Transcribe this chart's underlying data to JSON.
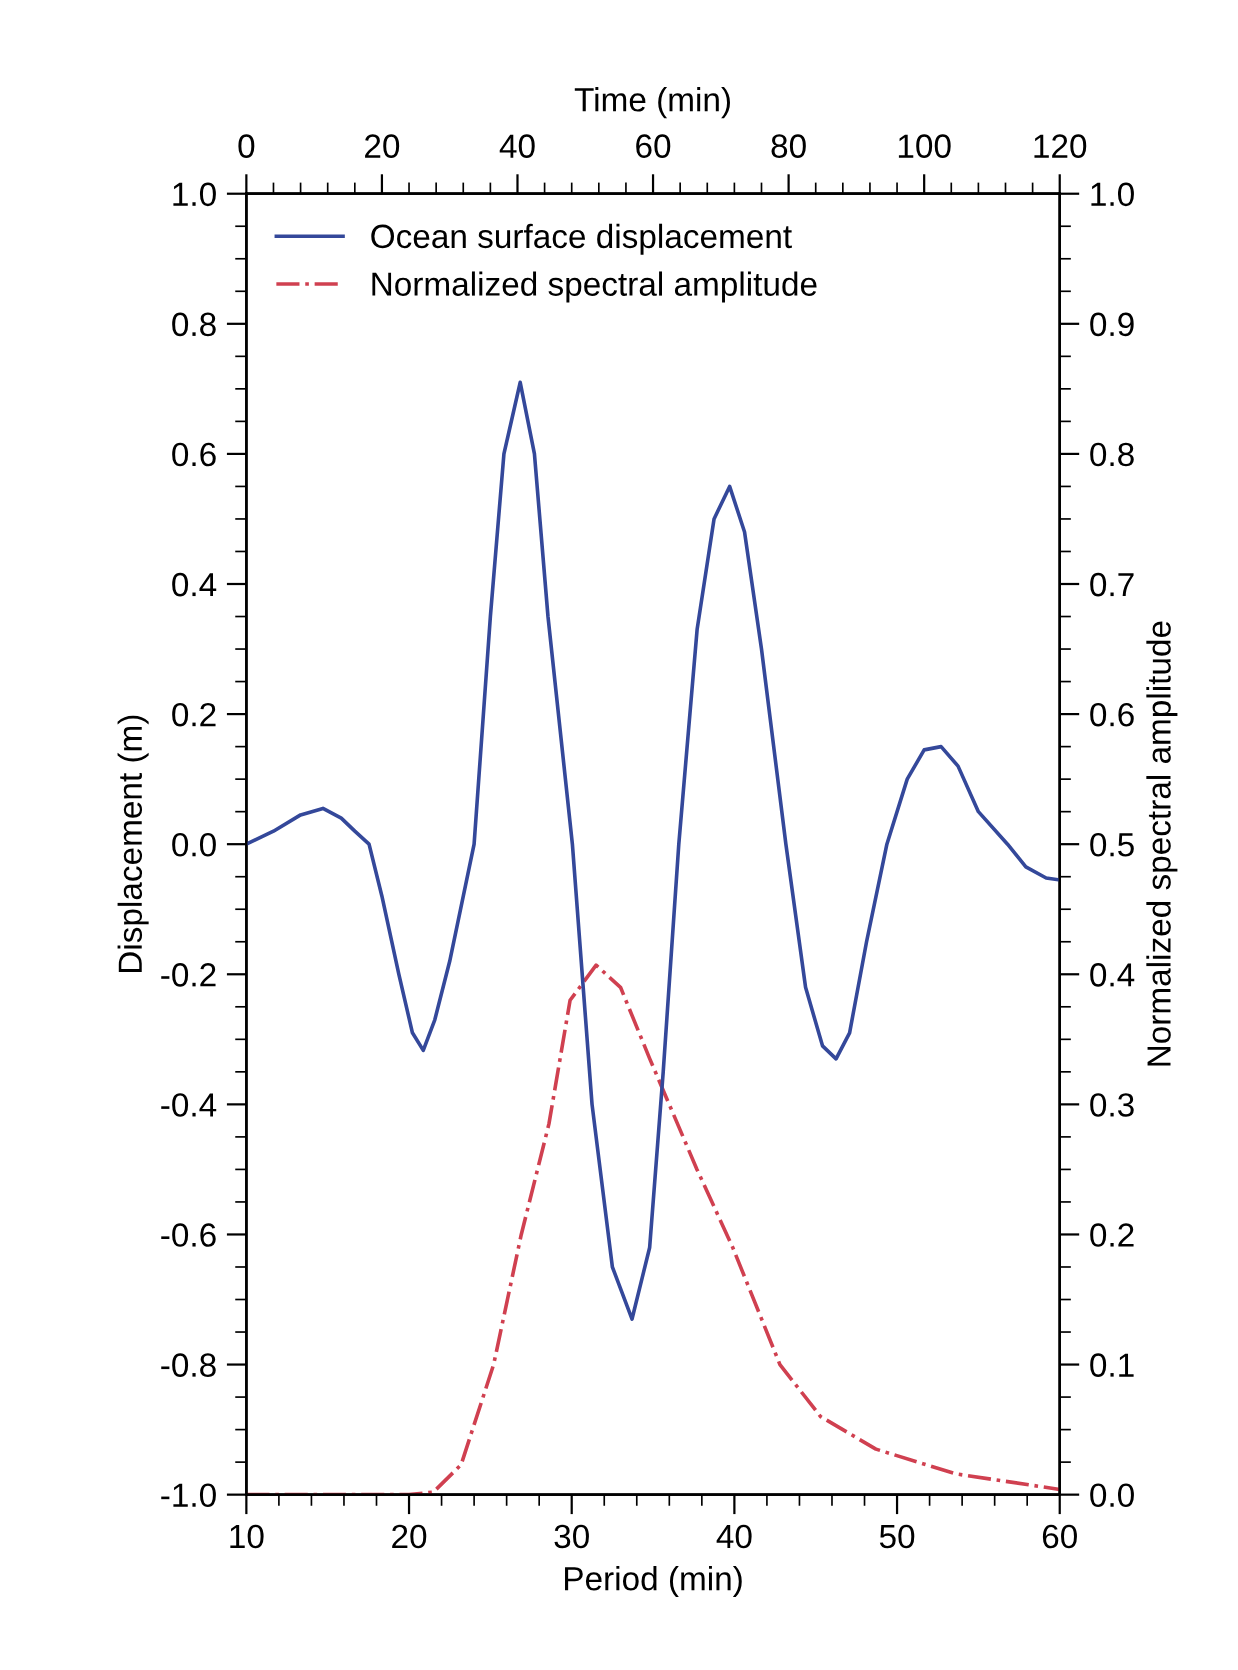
{
  "chart_data": {
    "type": "line",
    "xlabel": "Period (min)",
    "x2label": "Time (min)",
    "ylabel": "Displacement (m)",
    "y2label": "Normalized spectral amplitude",
    "xlim": [
      10,
      60
    ],
    "xticks": [
      10,
      20,
      30,
      40,
      50,
      60
    ],
    "x2lim": [
      0,
      120
    ],
    "x2ticks": [
      0,
      20,
      40,
      60,
      80,
      100,
      120
    ],
    "ylim": [
      -1.0,
      1.0
    ],
    "yticks": [
      {
        "value": -1.0,
        "label": "-1.0"
      },
      {
        "value": -0.8,
        "label": "-0.8"
      },
      {
        "value": -0.6,
        "label": "-0.6"
      },
      {
        "value": -0.4,
        "label": "-0.4"
      },
      {
        "value": -0.2,
        "label": "-0.2"
      },
      {
        "value": 0.0,
        "label": "0.0"
      },
      {
        "value": 0.2,
        "label": "0.2"
      },
      {
        "value": 0.4,
        "label": "0.4"
      },
      {
        "value": 0.6,
        "label": "0.6"
      },
      {
        "value": 0.8,
        "label": "0.8"
      },
      {
        "value": 1.0,
        "label": "1.0"
      }
    ],
    "y2lim": [
      0.0,
      1.0
    ],
    "y2ticks": [
      {
        "value": 0.0,
        "label": "0.0"
      },
      {
        "value": 0.1,
        "label": "0.1"
      },
      {
        "value": 0.2,
        "label": "0.2"
      },
      {
        "value": 0.3,
        "label": "0.3"
      },
      {
        "value": 0.4,
        "label": "0.4"
      },
      {
        "value": 0.5,
        "label": "0.5"
      },
      {
        "value": 0.6,
        "label": "0.6"
      },
      {
        "value": 0.7,
        "label": "0.7"
      },
      {
        "value": 0.8,
        "label": "0.8"
      },
      {
        "value": 0.9,
        "label": "0.9"
      },
      {
        "value": 1.0,
        "label": "1.0"
      }
    ],
    "grid": false,
    "legend": "top left",
    "series": [
      {
        "name": "Ocean surface displacement",
        "color": "#34489a",
        "axis": "x2",
        "line_style": "solid",
        "x": [
          0,
          4,
          8,
          11.3,
          14,
          16,
          18.1,
          20,
          22.5,
          24.5,
          26.1,
          27.8,
          30,
          33.6,
          36,
          38,
          40.4,
          42.5,
          44.5,
          48.1,
          51,
          54,
          56.9,
          59.5,
          61.5,
          63.8,
          66.5,
          69,
          71.3,
          73.5,
          76,
          79.6,
          82.5,
          85,
          87,
          89,
          91.5,
          94.5,
          97.5,
          100,
          102.5,
          105,
          108,
          112.3,
          115,
          118,
          120
        ],
        "values": [
          0.0,
          0.02,
          0.045,
          0.055,
          0.04,
          0.02,
          0.0,
          -0.08,
          -0.2,
          -0.29,
          -0.317,
          -0.27,
          -0.18,
          0.0,
          0.35,
          0.6,
          0.71,
          0.6,
          0.35,
          0.0,
          -0.4,
          -0.65,
          -0.73,
          -0.62,
          -0.35,
          0.0,
          0.33,
          0.5,
          0.55,
          0.48,
          0.3,
          0.0,
          -0.22,
          -0.31,
          -0.33,
          -0.29,
          -0.15,
          0.0,
          0.1,
          0.145,
          0.15,
          0.12,
          0.05,
          0.0,
          -0.035,
          -0.052,
          -0.055
        ]
      },
      {
        "name": "Normalized spectral amplitude",
        "color": "#d04050",
        "axis": "y2",
        "line_style": "dashdot",
        "x": [
          10,
          15,
          20,
          21.5,
          23.2,
          25.2,
          26.9,
          28.6,
          29.9,
          31.5,
          33,
          34.8,
          37.7,
          39.9,
          42.8,
          45.3,
          48.7,
          53.6,
          60
        ],
        "values": [
          0.0,
          0.0,
          0.0,
          0.002,
          0.023,
          0.1,
          0.2,
          0.285,
          0.38,
          0.407,
          0.39,
          0.335,
          0.25,
          0.19,
          0.1,
          0.06,
          0.035,
          0.016,
          0.004
        ]
      }
    ]
  }
}
